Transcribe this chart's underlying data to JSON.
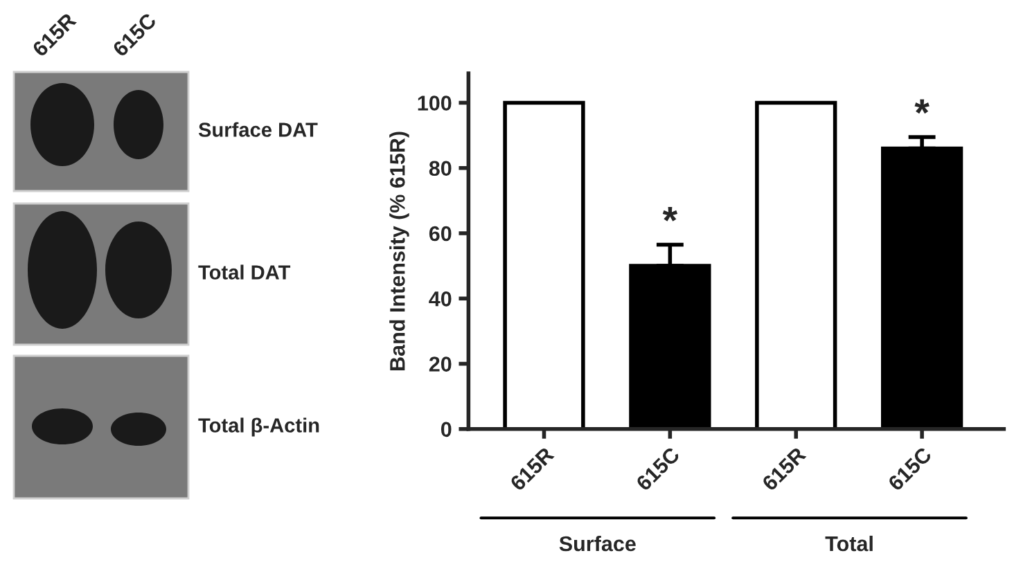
{
  "chart_data": {
    "type": "bar",
    "ylabel": "Band Intensity (% 615R)",
    "categories": [
      "615R",
      "615C",
      "615R",
      "615C"
    ],
    "values": [
      100,
      50,
      100,
      86
    ],
    "colors": [
      "#ffffff",
      "#000000",
      "#ffffff",
      "#000000"
    ],
    "errors": [
      null,
      6.5,
      null,
      3.5
    ],
    "ylim": [
      0,
      109
    ],
    "yticks": [
      0,
      20,
      40,
      60,
      80,
      100
    ],
    "grid": false,
    "annotations": [
      "*",
      "*",
      "Surface",
      "Total",
      "615R",
      "615C",
      "Surface DAT",
      "Total DAT",
      "Total β-Actin"
    ]
  }
}
